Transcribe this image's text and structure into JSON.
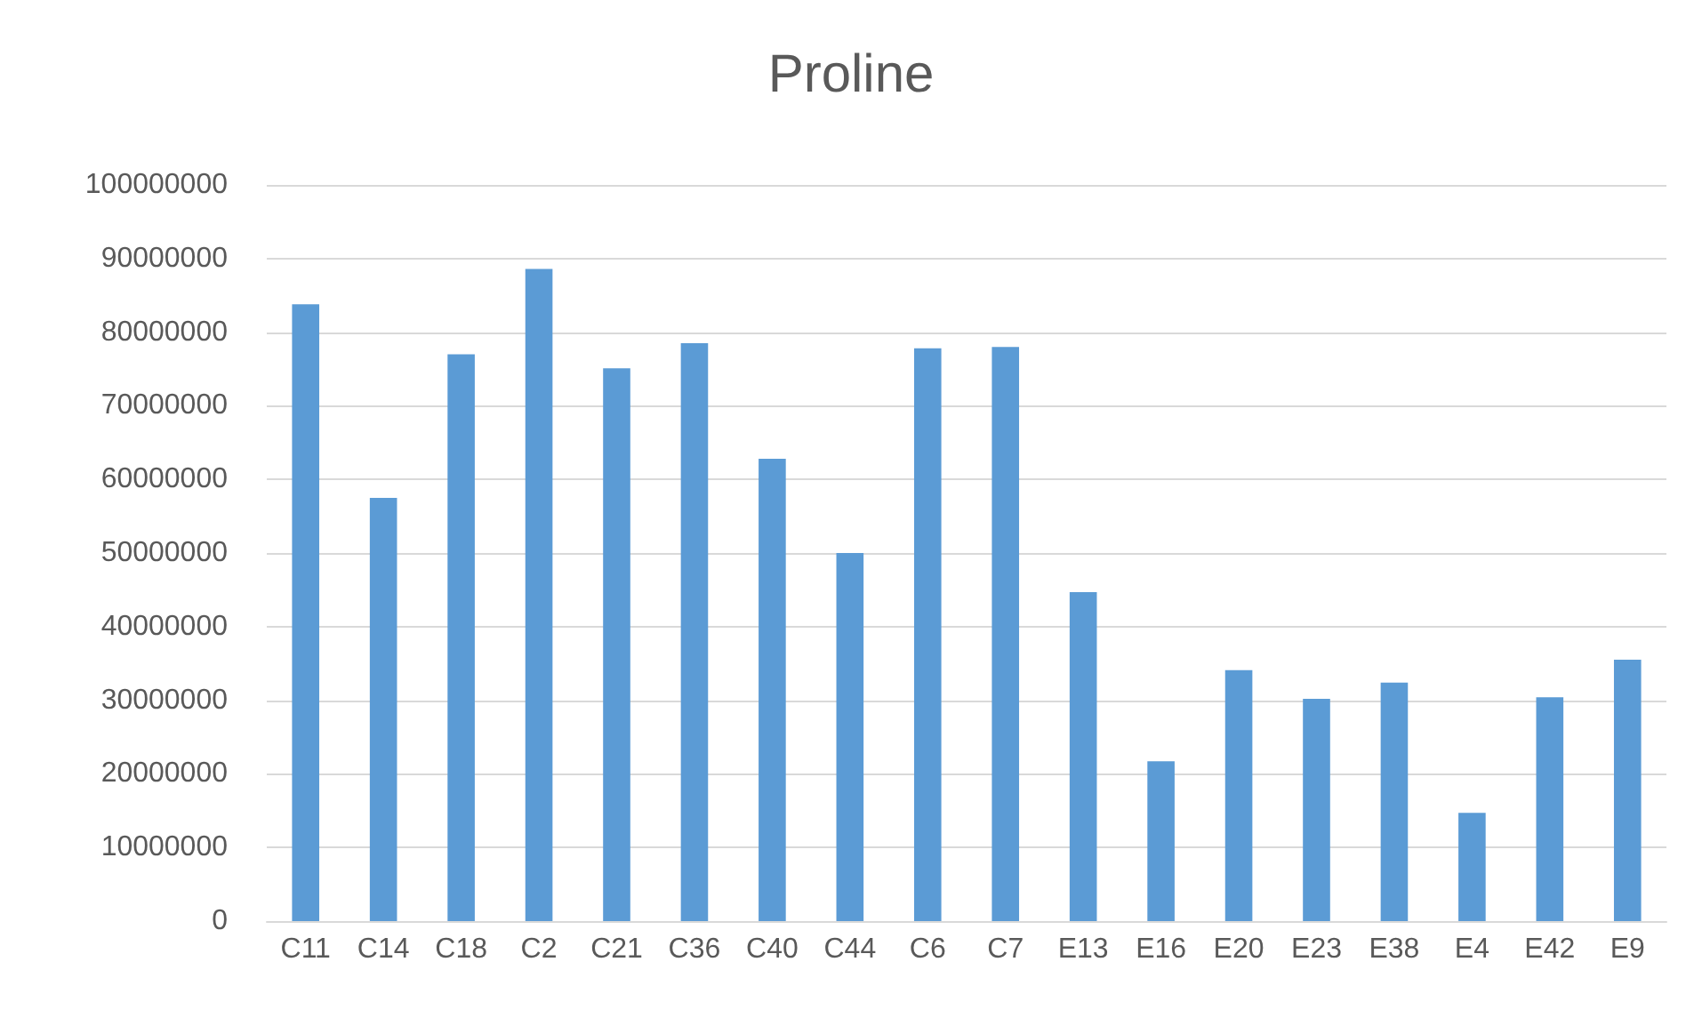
{
  "chart_data": {
    "type": "bar",
    "title": "Proline",
    "categories": [
      "C11",
      "C14",
      "C18",
      "C2",
      "C21",
      "C36",
      "C40",
      "C44",
      "C6",
      "C7",
      "E13",
      "E16",
      "E20",
      "E23",
      "E38",
      "E4",
      "E42",
      "E9"
    ],
    "values": [
      83800000,
      57500000,
      77000000,
      88600000,
      75100000,
      78500000,
      62800000,
      50000000,
      77800000,
      78000000,
      44700000,
      21700000,
      34100000,
      30200000,
      32400000,
      14700000,
      30400000,
      35500000
    ],
    "color": "#5b9bd5",
    "ylim": [
      0,
      100000000
    ],
    "yticks": [
      0,
      10000000,
      20000000,
      30000000,
      40000000,
      50000000,
      60000000,
      70000000,
      80000000,
      90000000,
      100000000
    ],
    "grid": "y"
  }
}
